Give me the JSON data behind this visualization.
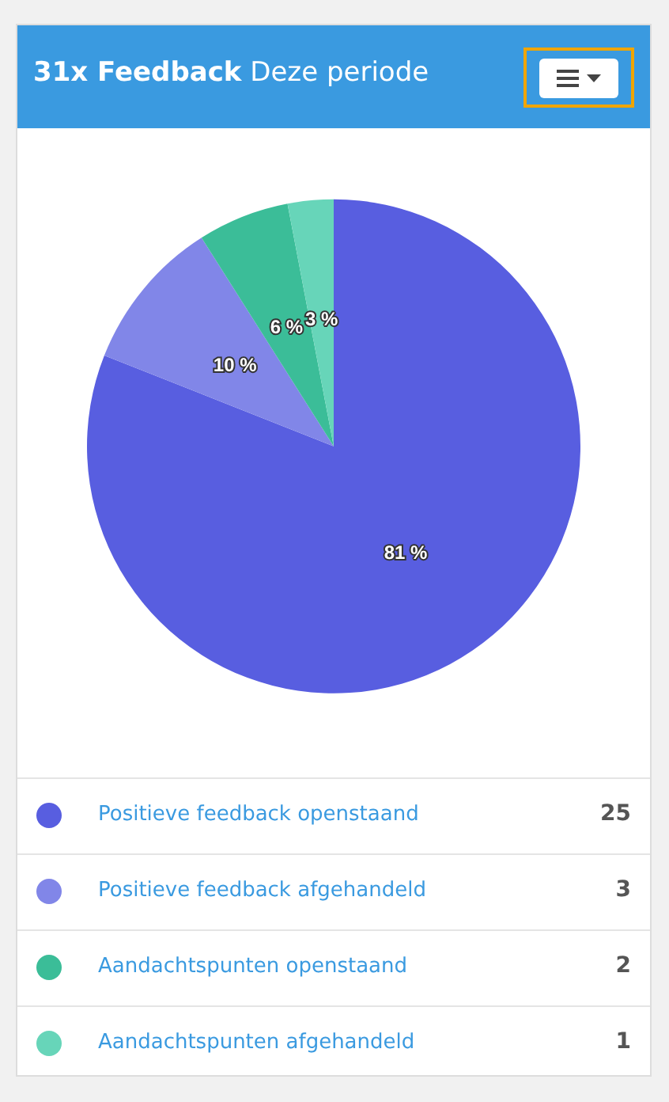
{
  "chart_data": {
    "type": "pie",
    "title": "31x Feedback",
    "subtitle": "Deze periode",
    "categories": [
      "Positieve feedback openstaand",
      "Positieve feedback afgehandeld",
      "Aandachtspunten openstaand",
      "Aandachtspunten afgehandeld"
    ],
    "values": [
      81,
      10,
      6,
      3
    ],
    "annotations": [
      "25",
      "3",
      "2",
      "1"
    ],
    "colors": [
      "#585ee0",
      "#8186e8",
      "#3bbd98",
      "#67d5b9"
    ],
    "value_labels": [
      "81 %",
      "10 %",
      "6 %",
      "3 %"
    ],
    "legend": "bottom"
  }
}
